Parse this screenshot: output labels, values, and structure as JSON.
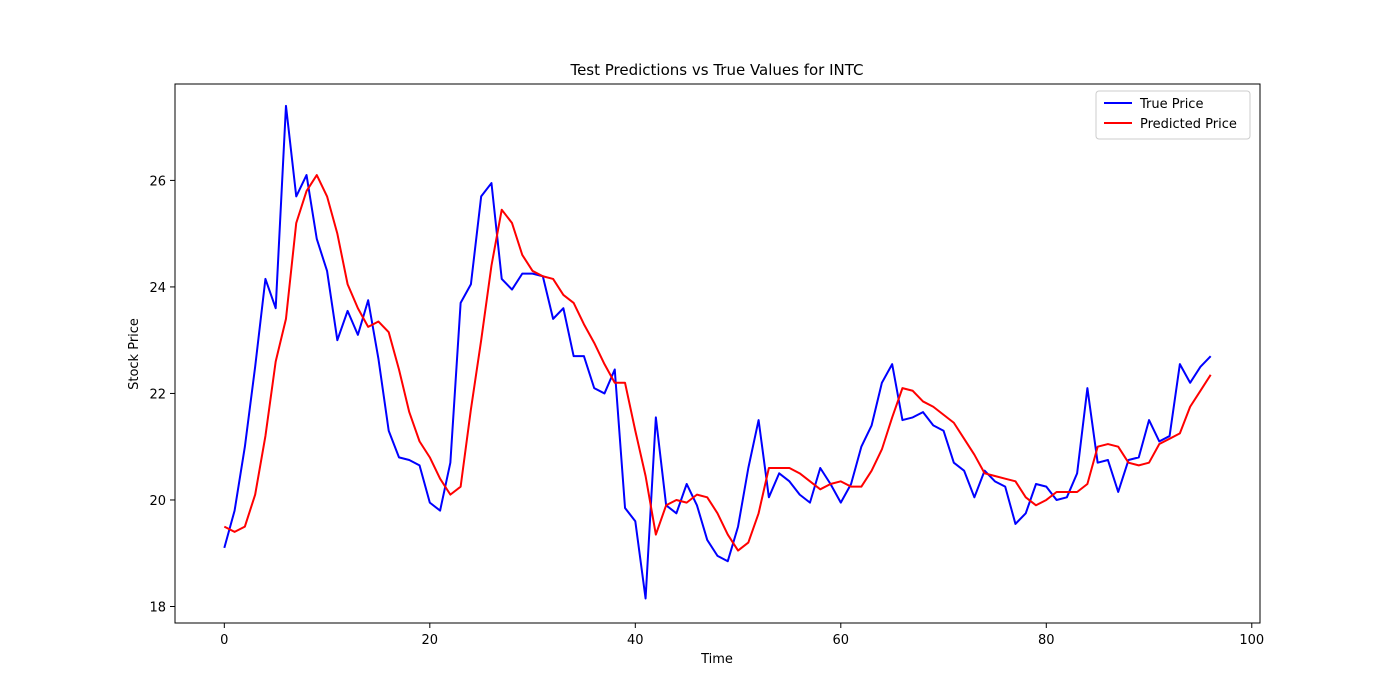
{
  "chart_data": {
    "type": "line",
    "title": "Test Predictions vs True Values for INTC",
    "xlabel": "Time",
    "ylabel": "Stock Price",
    "xlim": [
      -4.8,
      100.8
    ],
    "ylim": [
      17.69,
      27.81
    ],
    "xticks": [
      0,
      20,
      40,
      60,
      80,
      100
    ],
    "yticks": [
      18,
      20,
      22,
      24,
      26
    ],
    "grid": false,
    "legend_position": "top-right",
    "series": [
      {
        "name": "True Price",
        "color": "#0000ff",
        "values": [
          19.1,
          19.8,
          21.0,
          22.5,
          24.15,
          23.6,
          27.4,
          25.7,
          26.1,
          24.9,
          24.3,
          23.0,
          23.55,
          23.1,
          23.75,
          22.65,
          21.3,
          20.8,
          20.75,
          20.65,
          19.95,
          19.8,
          20.7,
          23.7,
          24.05,
          25.7,
          25.95,
          24.15,
          23.95,
          24.25,
          24.25,
          24.2,
          23.4,
          23.6,
          22.7,
          22.7,
          22.1,
          22.0,
          22.45,
          19.85,
          19.6,
          18.15,
          21.55,
          19.9,
          19.75,
          20.3,
          19.9,
          19.25,
          18.95,
          18.85,
          19.5,
          20.6,
          21.5,
          20.05,
          20.5,
          20.35,
          20.1,
          19.95,
          20.6,
          20.3,
          19.95,
          20.3,
          21.0,
          21.4,
          22.2,
          22.55,
          21.5,
          21.55,
          21.65,
          21.4,
          21.3,
          20.7,
          20.55,
          20.05,
          20.55,
          20.35,
          20.25,
          19.55,
          19.75,
          20.3,
          20.25,
          20.0,
          20.05,
          20.5,
          22.1,
          20.7,
          20.75,
          20.15,
          20.75,
          20.8,
          21.5,
          21.1,
          21.2,
          22.55,
          22.2,
          22.5,
          22.7
        ]
      },
      {
        "name": "Predicted Price",
        "color": "#ff0000",
        "values": [
          19.5,
          19.4,
          19.5,
          20.1,
          21.2,
          22.6,
          23.4,
          25.2,
          25.8,
          26.1,
          25.7,
          25.0,
          24.05,
          23.6,
          23.25,
          23.35,
          23.15,
          22.45,
          21.65,
          21.1,
          20.8,
          20.4,
          20.1,
          20.25,
          21.7,
          23.0,
          24.4,
          25.45,
          25.2,
          24.6,
          24.3,
          24.2,
          24.15,
          23.85,
          23.7,
          23.3,
          22.95,
          22.55,
          22.2,
          22.2,
          21.3,
          20.45,
          19.35,
          19.9,
          20.0,
          19.95,
          20.1,
          20.05,
          19.75,
          19.35,
          19.05,
          19.2,
          19.75,
          20.6,
          20.6,
          20.6,
          20.5,
          20.35,
          20.2,
          20.3,
          20.35,
          20.25,
          20.25,
          20.55,
          20.95,
          21.55,
          22.1,
          22.05,
          21.85,
          21.75,
          21.6,
          21.45,
          21.15,
          20.85,
          20.5,
          20.45,
          20.4,
          20.35,
          20.05,
          19.9,
          20.0,
          20.15,
          20.15,
          20.15,
          20.3,
          21.0,
          21.05,
          21.0,
          20.7,
          20.65,
          20.7,
          21.05,
          21.15,
          21.25,
          21.75,
          22.05,
          22.35
        ]
      }
    ]
  }
}
